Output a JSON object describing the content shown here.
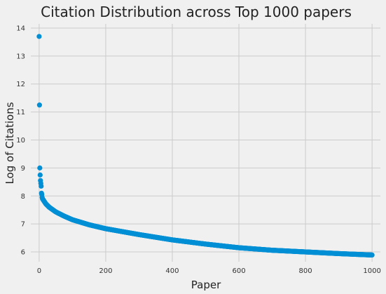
{
  "chart_data": {
    "type": "scatter",
    "title": "Citation Distribution across Top 1000 papers",
    "xlabel": "Paper",
    "ylabel": "Log of Citations",
    "xlim": [
      -25,
      1025
    ],
    "ylim": [
      5.65,
      14.15
    ],
    "x_ticks": [
      0,
      200,
      400,
      600,
      800,
      1000
    ],
    "y_ticks": [
      6,
      7,
      8,
      9,
      10,
      11,
      12,
      13,
      14
    ],
    "grid": true,
    "point_color": "#008fd5",
    "background_color": "#f0f0f0",
    "grid_color": "#cbcbcb",
    "highlight_points": [
      {
        "x": 0,
        "y": 13.7
      },
      {
        "x": 1,
        "y": 11.25
      },
      {
        "x": 2,
        "y": 9.0
      },
      {
        "x": 3,
        "y": 8.75
      },
      {
        "x": 4,
        "y": 8.55
      },
      {
        "x": 5,
        "y": 8.45
      },
      {
        "x": 6,
        "y": 8.35
      },
      {
        "x": 7,
        "y": 8.1
      },
      {
        "x": 8,
        "y": 8.05
      },
      {
        "x": 9,
        "y": 7.95
      },
      {
        "x": 10,
        "y": 7.9
      }
    ],
    "curve_anchors": [
      {
        "x": 10,
        "y": 7.9
      },
      {
        "x": 20,
        "y": 7.72
      },
      {
        "x": 30,
        "y": 7.6
      },
      {
        "x": 50,
        "y": 7.43
      },
      {
        "x": 75,
        "y": 7.28
      },
      {
        "x": 100,
        "y": 7.15
      },
      {
        "x": 150,
        "y": 6.97
      },
      {
        "x": 200,
        "y": 6.83
      },
      {
        "x": 300,
        "y": 6.62
      },
      {
        "x": 400,
        "y": 6.43
      },
      {
        "x": 500,
        "y": 6.28
      },
      {
        "x": 600,
        "y": 6.15
      },
      {
        "x": 700,
        "y": 6.06
      },
      {
        "x": 800,
        "y": 6.0
      },
      {
        "x": 900,
        "y": 5.94
      },
      {
        "x": 1000,
        "y": 5.89
      }
    ]
  }
}
